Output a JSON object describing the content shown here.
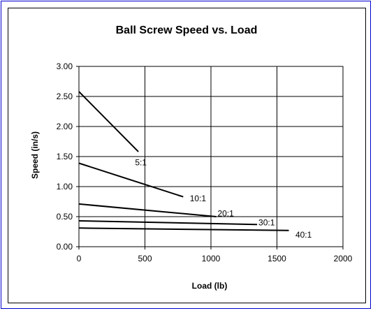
{
  "chart_data": {
    "type": "line",
    "title": "Ball Screw Speed vs. Load",
    "xlabel": "Load (lb)",
    "ylabel": "Speed (in/s)",
    "xlim": [
      0,
      2000
    ],
    "ylim": [
      0,
      3
    ],
    "x_ticks": [
      "0",
      "500",
      "1000",
      "1500",
      "2000"
    ],
    "y_ticks": [
      "0.00",
      "0.50",
      "1.00",
      "1.50",
      "2.00",
      "2.50",
      "3.00"
    ],
    "grid": true,
    "legend": "none",
    "series": [
      {
        "name": "5:1",
        "points": [
          [
            0,
            2.58
          ],
          [
            450,
            1.58
          ]
        ],
        "label_at": [
          425,
          1.4
        ]
      },
      {
        "name": "10:1",
        "points": [
          [
            0,
            1.39
          ],
          [
            790,
            0.83
          ]
        ],
        "label_at": [
          840,
          0.8
        ]
      },
      {
        "name": "20:1",
        "points": [
          [
            0,
            0.71
          ],
          [
            1040,
            0.5
          ]
        ],
        "label_at": [
          1050,
          0.55
        ]
      },
      {
        "name": "30:1",
        "points": [
          [
            0,
            0.43
          ],
          [
            1350,
            0.37
          ]
        ],
        "label_at": [
          1360,
          0.4
        ]
      },
      {
        "name": "40:1",
        "points": [
          [
            0,
            0.31
          ],
          [
            1590,
            0.27
          ]
        ],
        "label_at": [
          1640,
          0.2
        ]
      }
    ],
    "line_color": "#000000",
    "grid_color": "#000000"
  }
}
